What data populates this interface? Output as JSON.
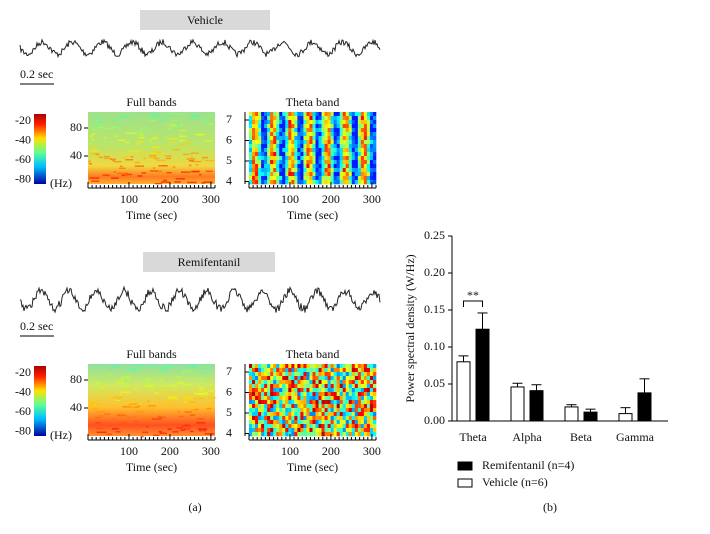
{
  "panel_a": {
    "label": "(a)",
    "groups": [
      {
        "title": "Vehicle",
        "scale_bar": "0.2 sec",
        "colorbar_ticks": [
          -20,
          -40,
          -60,
          -80
        ],
        "full_bands": {
          "title": "Full bands",
          "yticks": [
            80,
            40
          ],
          "y_unit": "(Hz)",
          "xticks": [
            100,
            200,
            300
          ],
          "xlabel": "Time (sec)"
        },
        "theta_band": {
          "title": "Theta band",
          "yticks": [
            7,
            6,
            5,
            4
          ],
          "xticks": [
            100,
            200,
            300
          ],
          "xlabel": "Time (sec)"
        }
      },
      {
        "title": "Remifentanil",
        "scale_bar": "0.2 sec",
        "colorbar_ticks": [
          -20,
          -40,
          -60,
          -80
        ],
        "full_bands": {
          "title": "Full bands",
          "yticks": [
            80,
            40
          ],
          "y_unit": "(Hz)",
          "xticks": [
            100,
            200,
            300
          ],
          "xlabel": "Time (sec)"
        },
        "theta_band": {
          "title": "Theta band",
          "yticks": [
            7,
            6,
            5,
            4
          ],
          "xticks": [
            100,
            200,
            300
          ],
          "xlabel": "Time (sec)"
        }
      }
    ]
  },
  "chart_data": {
    "type": "bar",
    "label": "(b)",
    "ylabel": "Power spectral density (W/Hz)",
    "categories": [
      "Theta",
      "Alpha",
      "Beta",
      "Gamma"
    ],
    "series": [
      {
        "name": "Vehicle (n=6)",
        "color": "#ffffff",
        "values": [
          0.08,
          0.046,
          0.019,
          0.01
        ],
        "errors": [
          0.008,
          0.005,
          0.003,
          0.008
        ]
      },
      {
        "name": "Remifentanil (n=4)",
        "color": "#000000",
        "values": [
          0.124,
          0.041,
          0.012,
          0.038
        ],
        "errors": [
          0.022,
          0.008,
          0.004,
          0.019
        ]
      }
    ],
    "ylim": [
      0,
      0.25
    ],
    "yticks": [
      {
        "value": 0,
        "label": "0.00"
      },
      {
        "value": 0.05,
        "label": "0.05"
      },
      {
        "value": 0.1,
        "label": "0.10"
      },
      {
        "value": 0.15,
        "label": "0.15"
      },
      {
        "value": 0.2,
        "label": "0.20"
      },
      {
        "value": 0.25,
        "label": "0.25"
      }
    ],
    "annotation": "**"
  }
}
